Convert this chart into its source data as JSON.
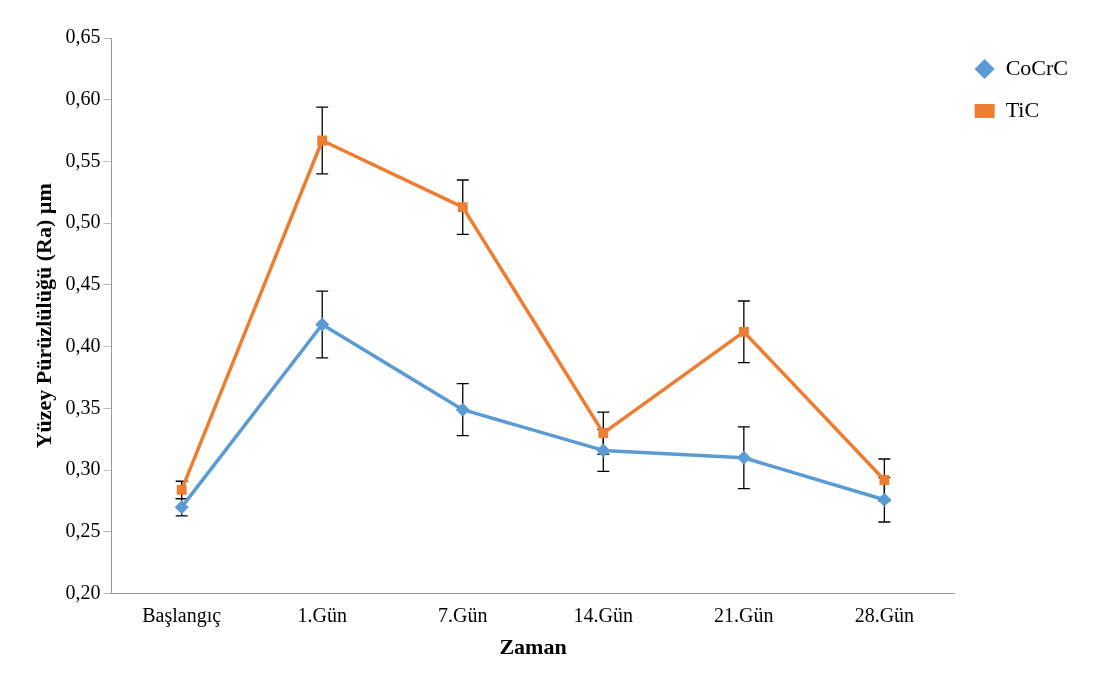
{
  "chart_data": {
    "type": "line",
    "xlabel": "Zaman",
    "ylabel": "Yüzey Pürüzlülüğü (Ra) µm",
    "categories": [
      "Başlangıç",
      "1.Gün",
      "7.Gün",
      "14.Gün",
      "21.Gün",
      "28.Gün"
    ],
    "series": [
      {
        "name": "CoCrC",
        "color": "#5b9bd5",
        "marker": "diamond",
        "values": [
          0.27,
          0.418,
          0.349,
          0.316,
          0.31,
          0.276
        ],
        "errors": [
          0.007,
          0.027,
          0.021,
          0.017,
          0.025,
          0.018
        ]
      },
      {
        "name": "TiC",
        "color": "#ed7d31",
        "marker": "square",
        "values": [
          0.284,
          0.567,
          0.513,
          0.33,
          0.412,
          0.292
        ],
        "errors": [
          0.007,
          0.027,
          0.022,
          0.017,
          0.025,
          0.017
        ]
      }
    ],
    "ylim": [
      0.2,
      0.65
    ],
    "yticks": [
      {
        "value": 0.2,
        "label": "0,20"
      },
      {
        "value": 0.25,
        "label": "0,25"
      },
      {
        "value": 0.3,
        "label": "0,30"
      },
      {
        "value": 0.35,
        "label": "0,35"
      },
      {
        "value": 0.4,
        "label": "0,40"
      },
      {
        "value": 0.45,
        "label": "0,45"
      },
      {
        "value": 0.5,
        "label": "0,50"
      },
      {
        "value": 0.55,
        "label": "0,55"
      },
      {
        "value": 0.6,
        "label": "0,60"
      },
      {
        "value": 0.65,
        "label": "0,65"
      }
    ],
    "grid": false,
    "legend": "top right",
    "line_style": "solid"
  }
}
